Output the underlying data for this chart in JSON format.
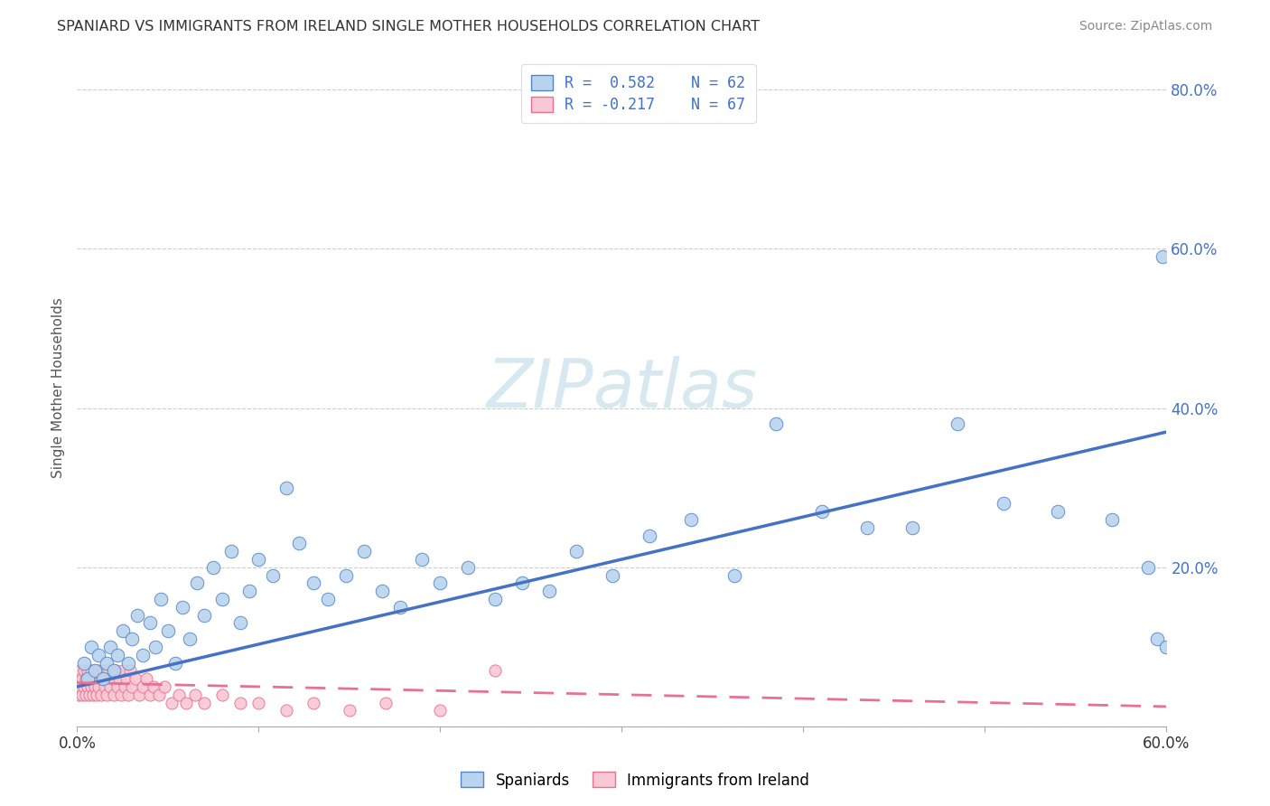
{
  "title": "SPANIARD VS IMMIGRANTS FROM IRELAND SINGLE MOTHER HOUSEHOLDS CORRELATION CHART",
  "source": "Source: ZipAtlas.com",
  "ylabel": "Single Mother Households",
  "xlim": [
    0.0,
    0.6
  ],
  "ylim": [
    0.0,
    0.85
  ],
  "blue_color": "#b8d4ee",
  "blue_edge_color": "#5585c5",
  "blue_line_color": "#4472c4",
  "pink_color": "#f8c8d4",
  "pink_edge_color": "#e87090",
  "pink_line_color": "#e87090",
  "watermark": "ZIPatlas",
  "background_color": "#ffffff",
  "blue_line_x0": 0.0,
  "blue_line_y0": 0.05,
  "blue_line_x1": 0.6,
  "blue_line_y1": 0.37,
  "pink_line_x0": 0.0,
  "pink_line_y0": 0.055,
  "pink_line_x1": 0.6,
  "pink_line_y1": 0.025,
  "blue_scatter_x": [
    0.004,
    0.006,
    0.008,
    0.01,
    0.012,
    0.014,
    0.016,
    0.018,
    0.02,
    0.022,
    0.025,
    0.028,
    0.03,
    0.033,
    0.036,
    0.04,
    0.043,
    0.046,
    0.05,
    0.054,
    0.058,
    0.062,
    0.066,
    0.07,
    0.075,
    0.08,
    0.085,
    0.09,
    0.095,
    0.1,
    0.108,
    0.115,
    0.122,
    0.13,
    0.138,
    0.148,
    0.158,
    0.168,
    0.178,
    0.19,
    0.2,
    0.215,
    0.23,
    0.245,
    0.26,
    0.275,
    0.295,
    0.315,
    0.338,
    0.362,
    0.385,
    0.41,
    0.435,
    0.46,
    0.485,
    0.51,
    0.54,
    0.57,
    0.59,
    0.595,
    0.598,
    0.6
  ],
  "blue_scatter_y": [
    0.08,
    0.06,
    0.1,
    0.07,
    0.09,
    0.06,
    0.08,
    0.1,
    0.07,
    0.09,
    0.12,
    0.08,
    0.11,
    0.14,
    0.09,
    0.13,
    0.1,
    0.16,
    0.12,
    0.08,
    0.15,
    0.11,
    0.18,
    0.14,
    0.2,
    0.16,
    0.22,
    0.13,
    0.17,
    0.21,
    0.19,
    0.3,
    0.23,
    0.18,
    0.16,
    0.19,
    0.22,
    0.17,
    0.15,
    0.21,
    0.18,
    0.2,
    0.16,
    0.18,
    0.17,
    0.22,
    0.19,
    0.24,
    0.26,
    0.19,
    0.38,
    0.27,
    0.25,
    0.25,
    0.38,
    0.28,
    0.27,
    0.26,
    0.2,
    0.11,
    0.59,
    0.1
  ],
  "pink_scatter_x": [
    0.0,
    0.001,
    0.001,
    0.002,
    0.002,
    0.003,
    0.003,
    0.004,
    0.004,
    0.005,
    0.005,
    0.006,
    0.006,
    0.007,
    0.007,
    0.008,
    0.008,
    0.009,
    0.009,
    0.01,
    0.01,
    0.011,
    0.011,
    0.012,
    0.012,
    0.013,
    0.013,
    0.014,
    0.015,
    0.015,
    0.016,
    0.017,
    0.018,
    0.019,
    0.02,
    0.021,
    0.022,
    0.023,
    0.024,
    0.025,
    0.026,
    0.027,
    0.028,
    0.029,
    0.03,
    0.032,
    0.034,
    0.036,
    0.038,
    0.04,
    0.042,
    0.045,
    0.048,
    0.052,
    0.056,
    0.06,
    0.065,
    0.07,
    0.08,
    0.09,
    0.1,
    0.115,
    0.13,
    0.15,
    0.17,
    0.2,
    0.23
  ],
  "pink_scatter_y": [
    0.05,
    0.06,
    0.04,
    0.07,
    0.05,
    0.06,
    0.04,
    0.07,
    0.05,
    0.06,
    0.04,
    0.07,
    0.05,
    0.06,
    0.04,
    0.07,
    0.05,
    0.06,
    0.04,
    0.07,
    0.05,
    0.06,
    0.04,
    0.07,
    0.05,
    0.06,
    0.04,
    0.07,
    0.05,
    0.06,
    0.04,
    0.07,
    0.05,
    0.06,
    0.04,
    0.07,
    0.05,
    0.06,
    0.04,
    0.07,
    0.05,
    0.06,
    0.04,
    0.07,
    0.05,
    0.06,
    0.04,
    0.05,
    0.06,
    0.04,
    0.05,
    0.04,
    0.05,
    0.03,
    0.04,
    0.03,
    0.04,
    0.03,
    0.04,
    0.03,
    0.03,
    0.02,
    0.03,
    0.02,
    0.03,
    0.02,
    0.07
  ]
}
